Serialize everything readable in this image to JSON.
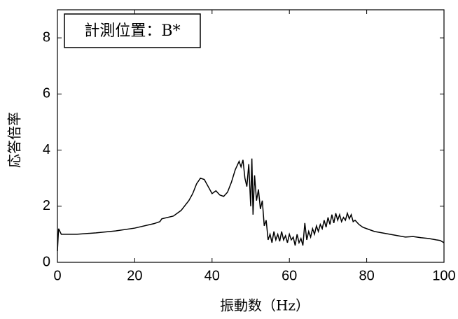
{
  "chart_data": {
    "type": "line",
    "annotation": "計測位置：B*",
    "xlabel": "振動数（Hz）",
    "ylabel": "応答倍率",
    "xlim": [
      0,
      100
    ],
    "ylim": [
      0,
      9
    ],
    "xticks": [
      0,
      20,
      40,
      60,
      80,
      100
    ],
    "yticks": [
      0,
      2,
      4,
      6,
      8
    ],
    "grid": false,
    "series": [
      {
        "color": "#000000",
        "x": [
          0,
          0.3,
          1,
          5,
          10,
          15,
          20,
          25,
          26.5,
          27,
          30,
          32,
          34,
          35,
          36,
          37,
          38,
          39,
          40,
          41,
          42,
          43,
          44,
          45,
          46,
          47,
          47.5,
          48,
          48.5,
          49,
          49.5,
          50,
          50.3,
          50.6,
          51,
          51.5,
          52,
          52.5,
          53,
          53.5,
          54,
          54.5,
          55,
          55.5,
          56,
          56.5,
          57,
          57.5,
          58,
          58.5,
          59,
          59.5,
          60,
          60.5,
          61,
          61.5,
          62,
          62.5,
          63,
          63.5,
          64,
          64.5,
          65,
          65.5,
          66,
          66.5,
          67,
          67.5,
          68,
          68.5,
          69,
          69.5,
          70,
          70.5,
          71,
          71.5,
          72,
          72.5,
          73,
          73.5,
          74,
          74.5,
          75,
          75.5,
          76,
          76.5,
          77,
          78,
          79,
          80,
          82,
          84,
          86,
          88,
          90,
          92,
          94,
          96,
          98,
          99,
          100
        ],
        "values": [
          0.4,
          1.2,
          1.0,
          1.0,
          1.05,
          1.12,
          1.22,
          1.38,
          1.45,
          1.55,
          1.65,
          1.85,
          2.2,
          2.45,
          2.8,
          3.0,
          2.95,
          2.7,
          2.45,
          2.55,
          2.4,
          2.35,
          2.5,
          2.85,
          3.3,
          3.6,
          3.4,
          3.65,
          3.0,
          2.7,
          3.5,
          2.0,
          3.7,
          1.7,
          3.1,
          2.2,
          2.6,
          1.9,
          2.2,
          1.3,
          1.5,
          0.8,
          1.0,
          0.7,
          1.1,
          0.8,
          1.0,
          0.75,
          1.1,
          0.8,
          0.95,
          0.7,
          1.0,
          0.8,
          0.9,
          0.6,
          1.0,
          0.7,
          0.85,
          0.6,
          1.4,
          0.8,
          1.1,
          0.9,
          1.2,
          1.0,
          1.3,
          1.1,
          1.35,
          1.2,
          1.5,
          1.25,
          1.6,
          1.35,
          1.7,
          1.4,
          1.75,
          1.5,
          1.7,
          1.45,
          1.6,
          1.5,
          1.75,
          1.55,
          1.7,
          1.45,
          1.5,
          1.35,
          1.25,
          1.2,
          1.1,
          1.05,
          1.0,
          0.95,
          0.9,
          0.92,
          0.88,
          0.85,
          0.8,
          0.78,
          0.7
        ]
      }
    ]
  }
}
